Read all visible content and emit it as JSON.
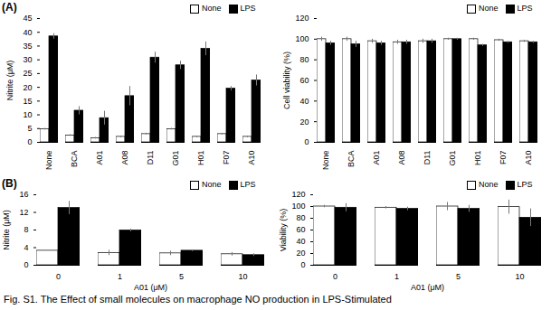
{
  "caption": "Fig. S1. The Effect of small molecules on macrophage NO production in LPS-Stimulated",
  "chart_data": [
    {
      "type": "bar",
      "annotations": [
        "(A)"
      ],
      "y_label": "Nitrite (μM)",
      "categories": [
        "None",
        "BCA",
        "A01",
        "A08",
        "D11",
        "G01",
        "H01",
        "F07",
        "A10"
      ],
      "series": [
        {
          "name": "None",
          "color": "#ffffff",
          "values": [
            4.8,
            2.5,
            1.5,
            2,
            3,
            4.8,
            2,
            3,
            2
          ],
          "errors": [
            0.3,
            0.3,
            0.3,
            0.3,
            0.3,
            0.3,
            0.3,
            0.3,
            0.3
          ]
        },
        {
          "name": "LPS",
          "color": "#000000",
          "values": [
            38.5,
            11.5,
            8.8,
            16.8,
            30.8,
            28,
            34,
            19.5,
            22.5
          ],
          "errors": [
            1,
            1.5,
            2.5,
            3.5,
            2,
            1.5,
            2.5,
            0.8,
            2
          ]
        }
      ],
      "ylim": [
        0,
        45
      ],
      "yticks": [
        0,
        5,
        10,
        15,
        20,
        25,
        30,
        35,
        40,
        45
      ]
    },
    {
      "type": "bar",
      "y_label": "Cell viability (%)",
      "categories": [
        "None",
        "BCA",
        "A01",
        "A08",
        "D11",
        "G01",
        "H01",
        "F07",
        "A10"
      ],
      "series": [
        {
          "name": "None",
          "color": "#ffffff",
          "values": [
            100,
            100,
            98,
            97,
            98,
            100,
            100,
            99,
            98
          ],
          "errors": [
            2,
            2,
            2,
            2,
            2,
            1,
            1,
            1,
            1
          ]
        },
        {
          "name": "LPS",
          "color": "#000000",
          "values": [
            96,
            95,
            96,
            97,
            98,
            100,
            94,
            97,
            97
          ],
          "errors": [
            2,
            3,
            2,
            2,
            2,
            1,
            1,
            1,
            1
          ]
        }
      ],
      "ylim": [
        0,
        120
      ],
      "yticks": [
        0,
        20,
        40,
        60,
        80,
        100,
        120
      ]
    },
    {
      "type": "bar",
      "annotations": [
        "(B)"
      ],
      "y_label": "Nitrite (μM)",
      "x_label": "A01 (μM)",
      "categories": [
        "0",
        "1",
        "5",
        "10"
      ],
      "series": [
        {
          "name": "None",
          "color": "#ffffff",
          "values": [
            3.3,
            2.8,
            2.7,
            2.5
          ],
          "errors": [
            0,
            0.6,
            0.5,
            0.4
          ]
        },
        {
          "name": "LPS",
          "color": "#000000",
          "values": [
            13,
            7.9,
            3.3,
            2.3
          ],
          "errors": [
            1.5,
            0.3,
            0.2,
            0.3
          ]
        }
      ],
      "ylim": [
        0,
        16
      ],
      "yticks": [
        0,
        4,
        8,
        12,
        16
      ]
    },
    {
      "type": "bar",
      "y_label": "Viability (%)",
      "x_label": "A01 (μM)",
      "categories": [
        "0",
        "1",
        "5",
        "10"
      ],
      "series": [
        {
          "name": "None",
          "color": "#ffffff",
          "values": [
            100,
            98,
            100,
            99
          ],
          "errors": [
            2,
            2,
            7,
            12
          ]
        },
        {
          "name": "LPS",
          "color": "#000000",
          "values": [
            98,
            96,
            96,
            81
          ],
          "errors": [
            7,
            3,
            6,
            15
          ]
        }
      ],
      "ylim": [
        0,
        120
      ],
      "yticks": [
        0,
        20,
        40,
        60,
        80,
        100,
        120
      ]
    }
  ]
}
